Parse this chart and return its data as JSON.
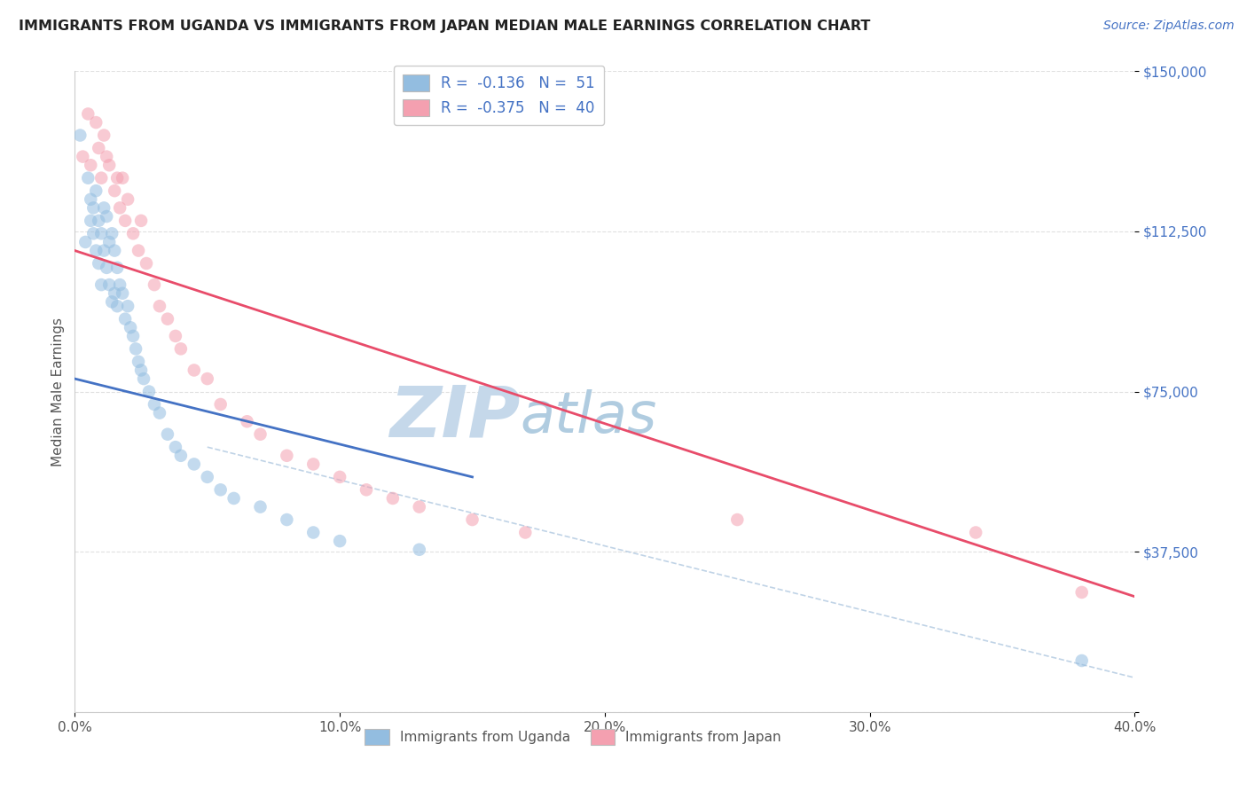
{
  "title": "IMMIGRANTS FROM UGANDA VS IMMIGRANTS FROM JAPAN MEDIAN MALE EARNINGS CORRELATION CHART",
  "source": "Source: ZipAtlas.com",
  "ylabel": "Median Male Earnings",
  "xlim": [
    0.0,
    0.4
  ],
  "ylim": [
    0,
    150000
  ],
  "xtick_vals": [
    0.0,
    0.1,
    0.2,
    0.3,
    0.4
  ],
  "ytick_vals": [
    0,
    37500,
    75000,
    112500,
    150000
  ],
  "ytick_labels": [
    "",
    "$37,500",
    "$75,000",
    "$112,500",
    "$150,000"
  ],
  "watermark_zip": "ZIP",
  "watermark_atlas": "atlas",
  "legend_label_1": "R =  -0.136   N =  51",
  "legend_label_2": "R =  -0.375   N =  40",
  "legend_bottom": [
    "Immigrants from Uganda",
    "Immigrants from Japan"
  ],
  "uganda_color": "#93bde0",
  "japan_color": "#f4a0b0",
  "uganda_line_color": "#4472c4",
  "japan_line_color": "#e84c6a",
  "uganda_scatter_x": [
    0.002,
    0.004,
    0.005,
    0.006,
    0.006,
    0.007,
    0.007,
    0.008,
    0.008,
    0.009,
    0.009,
    0.01,
    0.01,
    0.011,
    0.011,
    0.012,
    0.012,
    0.013,
    0.013,
    0.014,
    0.014,
    0.015,
    0.015,
    0.016,
    0.016,
    0.017,
    0.018,
    0.019,
    0.02,
    0.021,
    0.022,
    0.023,
    0.024,
    0.025,
    0.026,
    0.028,
    0.03,
    0.032,
    0.035,
    0.038,
    0.04,
    0.045,
    0.05,
    0.055,
    0.06,
    0.07,
    0.08,
    0.09,
    0.1,
    0.13,
    0.38
  ],
  "uganda_scatter_y": [
    135000,
    110000,
    125000,
    120000,
    115000,
    118000,
    112000,
    122000,
    108000,
    115000,
    105000,
    112000,
    100000,
    118000,
    108000,
    116000,
    104000,
    110000,
    100000,
    112000,
    96000,
    108000,
    98000,
    104000,
    95000,
    100000,
    98000,
    92000,
    95000,
    90000,
    88000,
    85000,
    82000,
    80000,
    78000,
    75000,
    72000,
    70000,
    65000,
    62000,
    60000,
    58000,
    55000,
    52000,
    50000,
    48000,
    45000,
    42000,
    40000,
    38000,
    12000
  ],
  "japan_scatter_x": [
    0.003,
    0.005,
    0.006,
    0.008,
    0.009,
    0.01,
    0.011,
    0.012,
    0.013,
    0.015,
    0.016,
    0.017,
    0.018,
    0.019,
    0.02,
    0.022,
    0.024,
    0.025,
    0.027,
    0.03,
    0.032,
    0.035,
    0.038,
    0.04,
    0.045,
    0.05,
    0.055,
    0.065,
    0.07,
    0.08,
    0.09,
    0.1,
    0.11,
    0.12,
    0.13,
    0.15,
    0.17,
    0.25,
    0.34,
    0.38
  ],
  "japan_scatter_y": [
    130000,
    140000,
    128000,
    138000,
    132000,
    125000,
    135000,
    130000,
    128000,
    122000,
    125000,
    118000,
    125000,
    115000,
    120000,
    112000,
    108000,
    115000,
    105000,
    100000,
    95000,
    92000,
    88000,
    85000,
    80000,
    78000,
    72000,
    68000,
    65000,
    60000,
    58000,
    55000,
    52000,
    50000,
    48000,
    45000,
    42000,
    45000,
    42000,
    28000
  ],
  "background_color": "#ffffff",
  "grid_color": "#dddddd",
  "title_color": "#222222",
  "axis_color": "#4472c4",
  "watermark_color_zip": "#c5d8ea",
  "watermark_color_atlas": "#b0cce0",
  "scatter_size": 110,
  "scatter_alpha": 0.55,
  "line_width": 2.0,
  "dashed_line_color": "#b0c8e0",
  "uganda_line_xrange": [
    0.0,
    0.15
  ],
  "uganda_line_yrange": [
    78000,
    55000
  ],
  "japan_line_xrange": [
    0.0,
    0.4
  ],
  "japan_line_yrange": [
    108000,
    27000
  ],
  "dashed_xrange": [
    0.05,
    0.4
  ],
  "dashed_yrange": [
    62000,
    8000
  ]
}
